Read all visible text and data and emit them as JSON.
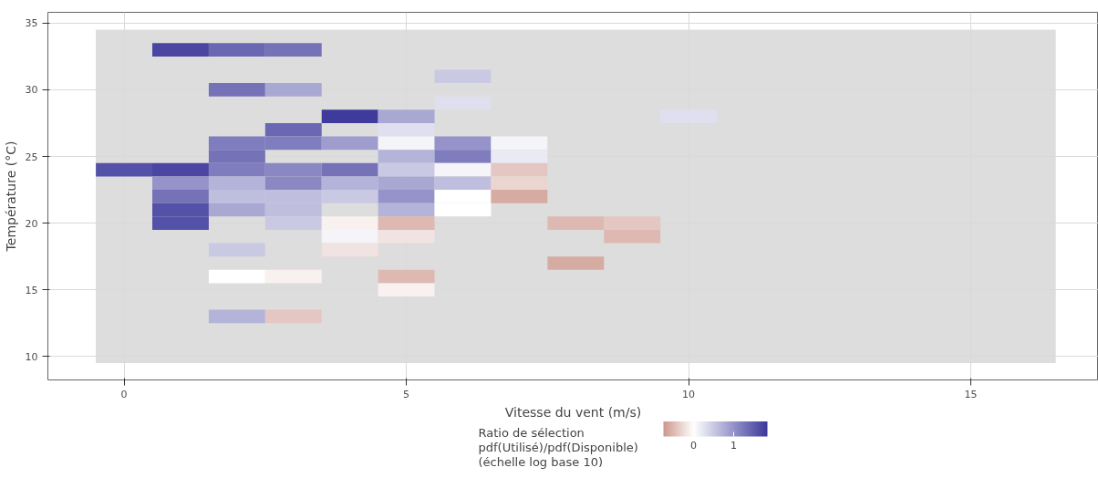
{
  "chart_data": {
    "type": "heatmap",
    "xlabel": "Vitesse du vent (m/s)",
    "ylabel": "Température (°C)",
    "clabel": "Ratio de sélection\npdf(Utilisé)/pdf(Disponible)\n(échelle log base 10)",
    "x": [
      0,
      1,
      2,
      3,
      4,
      5,
      6,
      7,
      8,
      9,
      10
    ],
    "y": [
      33,
      31,
      30,
      29,
      28,
      27,
      26,
      25,
      24,
      23,
      22,
      21,
      20,
      19,
      18,
      17,
      16,
      15,
      13
    ],
    "cells": [
      [
        null,
        1.7,
        1.4,
        1.3,
        null,
        null,
        null,
        null,
        null,
        null,
        null
      ],
      [
        null,
        null,
        null,
        null,
        null,
        null,
        0.5,
        null,
        null,
        null,
        null
      ],
      [
        null,
        null,
        1.3,
        0.8,
        null,
        null,
        null,
        null,
        null,
        null,
        null
      ],
      [
        null,
        null,
        null,
        null,
        null,
        null,
        0.3,
        null,
        null,
        null,
        null
      ],
      [
        null,
        null,
        null,
        null,
        1.8,
        0.8,
        null,
        null,
        null,
        null,
        0.3
      ],
      [
        null,
        null,
        null,
        1.4,
        null,
        0.3,
        null,
        null,
        null,
        null,
        null
      ],
      [
        null,
        null,
        1.2,
        1.2,
        0.9,
        0.1,
        1.0,
        0.1,
        null,
        null,
        null
      ],
      [
        null,
        null,
        1.3,
        null,
        null,
        0.7,
        1.2,
        0.2,
        null,
        null,
        null
      ],
      [
        1.6,
        1.7,
        1.2,
        1.1,
        1.3,
        0.5,
        0.1,
        -0.4,
        null,
        null,
        null
      ],
      [
        null,
        1.0,
        0.7,
        1.1,
        0.7,
        0.8,
        0.6,
        -0.3,
        null,
        null,
        null
      ],
      [
        null,
        1.3,
        0.6,
        0.6,
        0.5,
        1.0,
        0.0,
        -0.6,
        null,
        null,
        null
      ],
      [
        null,
        1.6,
        0.8,
        0.6,
        null,
        0.7,
        0.0,
        null,
        null,
        null,
        null
      ],
      [
        null,
        1.6,
        null,
        0.5,
        -0.1,
        -0.5,
        null,
        null,
        -0.5,
        -0.4,
        null
      ],
      [
        null,
        null,
        null,
        null,
        0.1,
        -0.2,
        null,
        null,
        null,
        -0.5,
        null
      ],
      [
        null,
        null,
        0.5,
        null,
        -0.2,
        null,
        null,
        null,
        null,
        null,
        null
      ],
      [
        null,
        null,
        null,
        null,
        null,
        null,
        null,
        null,
        -0.6,
        null,
        null
      ],
      [
        null,
        null,
        0.0,
        -0.1,
        null,
        -0.5,
        null,
        null,
        null,
        null,
        null
      ],
      [
        null,
        null,
        null,
        null,
        null,
        -0.1,
        null,
        null,
        null,
        null,
        null
      ],
      [
        null,
        null,
        0.7,
        -0.4,
        null,
        null,
        null,
        null,
        null,
        null,
        null
      ]
    ],
    "colors": [
      "#cc968c",
      "#ffffff",
      "#3b379b"
    ],
    "clim": [
      -0.75,
      1.84
    ],
    "cticks": [
      0,
      1
    ],
    "bands": [
      {
        "axis": "x",
        "from": -0.5,
        "to": 16.5,
        "color": "#dddddd"
      },
      {
        "axis": "y",
        "from": 9.5,
        "to": 34.5,
        "color": "#dddddd"
      }
    ],
    "xlim": [
      -1.35,
      17.26
    ],
    "ylim": [
      8.24,
      35.81
    ],
    "xticks": [
      0,
      5,
      10,
      15
    ],
    "yticks": [
      10,
      15,
      20,
      25,
      30,
      35
    ],
    "grid": true
  }
}
